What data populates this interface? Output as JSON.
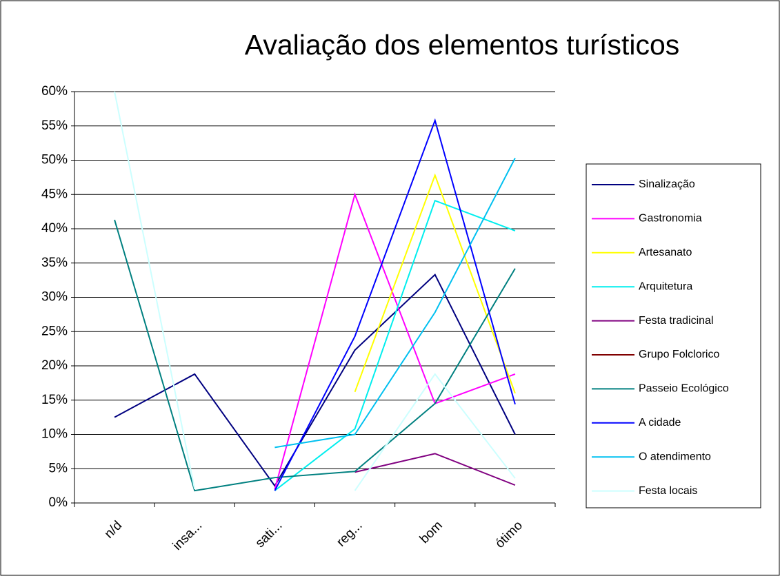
{
  "chart_data": {
    "type": "line",
    "title": "Avaliação dos elementos turísticos",
    "categories": [
      "n/d",
      "insa...",
      "sati...",
      "reg...",
      "bom",
      "ótimo"
    ],
    "ylim": [
      0,
      60
    ],
    "yticks": [
      {
        "value": 0,
        "label": "0%"
      },
      {
        "value": 5,
        "label": "5%"
      },
      {
        "value": 10,
        "label": "10%"
      },
      {
        "value": 15,
        "label": "15%"
      },
      {
        "value": 20,
        "label": "20%"
      },
      {
        "value": 25,
        "label": "25%"
      },
      {
        "value": 30,
        "label": "30%"
      },
      {
        "value": 35,
        "label": "35%"
      },
      {
        "value": 40,
        "label": "40%"
      },
      {
        "value": 45,
        "label": "45%"
      },
      {
        "value": 50,
        "label": "50%"
      },
      {
        "value": 55,
        "label": "55%"
      },
      {
        "value": 60,
        "label": "60%"
      }
    ],
    "grid": true,
    "legend": "right",
    "series": [
      {
        "name": "Sinalização",
        "color": "#000080",
        "values": [
          12.5,
          18.8,
          2.5,
          22.3,
          33.3,
          10
        ]
      },
      {
        "name": "Gastronomia",
        "color": "#ff00ff",
        "values": [
          null,
          null,
          2,
          45,
          14.5,
          18.8
        ]
      },
      {
        "name": "Artesanato",
        "color": "#ffff00",
        "values": [
          null,
          null,
          null,
          16.2,
          47.8,
          16
        ]
      },
      {
        "name": "Arquitetura",
        "color": "#00eeee",
        "values": [
          null,
          null,
          1.8,
          10.8,
          44.1,
          39.7
        ]
      },
      {
        "name": "Festa tradicinal",
        "color": "#800080",
        "values": [
          null,
          null,
          null,
          4.5,
          7.2,
          2.6
        ]
      },
      {
        "name": "Grupo Folclorico",
        "color": "#800000",
        "values": [
          null,
          null,
          null,
          null,
          null,
          null
        ]
      },
      {
        "name": "Passeio Ecológico",
        "color": "#008080",
        "values": [
          41.3,
          1.8,
          3.7,
          4.6,
          14.5,
          34.2
        ]
      },
      {
        "name": "A cidade",
        "color": "#0000ff",
        "values": [
          null,
          null,
          1.8,
          24.3,
          55.8,
          14.4
        ]
      },
      {
        "name": "O atendimento",
        "color": "#00c0f0",
        "values": [
          null,
          null,
          8.1,
          10,
          27.8,
          50.3
        ]
      },
      {
        "name": "Festa locais",
        "color": "#ccffff",
        "values": [
          60,
          2,
          null,
          1.8,
          18.8,
          3.6
        ]
      }
    ]
  }
}
